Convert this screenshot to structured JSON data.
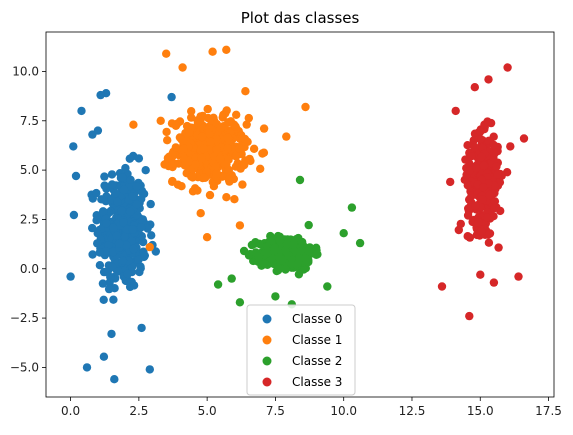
{
  "chart_data": {
    "type": "scatter",
    "title": "Plot das classes",
    "xlabel": "",
    "ylabel": "",
    "xlim": [
      -0.9,
      17.7
    ],
    "ylim": [
      -6.5,
      12.0
    ],
    "xticks": [
      0.0,
      2.5,
      5.0,
      7.5,
      10.0,
      12.5,
      15.0,
      17.5
    ],
    "yticks": [
      -5.0,
      -2.5,
      0.0,
      2.5,
      5.0,
      7.5,
      10.0
    ],
    "xtick_labels": [
      "0.0",
      "2.5",
      "5.0",
      "7.5",
      "10.0",
      "12.5",
      "15.0",
      "17.5"
    ],
    "ytick_labels": [
      "−5.0",
      "−2.5",
      "0.0",
      "2.5",
      "5.0",
      "7.5",
      "10.0"
    ],
    "grid": false,
    "legend_position": "bottom-center",
    "series": [
      {
        "name": "Classe 0",
        "color": "#1f77b4",
        "center": [
          1.9,
          2.0
        ],
        "spread": [
          0.8,
          2.8
        ],
        "count": 380,
        "x": [
          0.1,
          0.6,
          1.6,
          2.9,
          1.3,
          0.0,
          0.2,
          3.7,
          0.4,
          1.1,
          2.3,
          3.0,
          0.8,
          1.0,
          1.5,
          2.6
        ],
        "y": [
          6.2,
          -5.0,
          -5.6,
          -5.1,
          8.9,
          -0.4,
          4.7,
          8.7,
          8.0,
          8.8,
          1.0,
          1.2,
          6.8,
          7.0,
          -3.3,
          -3.0
        ]
      },
      {
        "name": "Classe 1",
        "color": "#ff7f0e",
        "center": [
          5.1,
          6.0
        ],
        "spread": [
          1.2,
          1.5
        ],
        "count": 420,
        "x": [
          3.5,
          5.7,
          5.2,
          8.6,
          2.9,
          6.2,
          4.1,
          5.0,
          3.3,
          2.3,
          7.9,
          6.4
        ],
        "y": [
          10.9,
          11.1,
          11.0,
          8.2,
          1.1,
          2.2,
          10.2,
          1.6,
          7.5,
          7.3,
          6.7,
          9.0
        ]
      },
      {
        "name": "Classe 2",
        "color": "#2ca02c",
        "center": [
          7.9,
          0.8
        ],
        "spread": [
          0.9,
          0.75
        ],
        "count": 370,
        "x": [
          5.4,
          10.3,
          8.4,
          10.6,
          6.2,
          8.1,
          7.5,
          9.4,
          5.9,
          10.0
        ],
        "y": [
          -0.8,
          3.1,
          4.5,
          1.3,
          -1.7,
          -1.8,
          -1.4,
          -0.9,
          -0.5,
          1.8
        ]
      },
      {
        "name": "Classe 3",
        "color": "#d62728",
        "center": [
          15.1,
          4.4
        ],
        "spread": [
          0.5,
          2.1
        ],
        "count": 360,
        "x": [
          13.6,
          16.0,
          14.6,
          16.6,
          15.3,
          13.9,
          15.5,
          14.8,
          16.4,
          14.1,
          15.0,
          16.1
        ],
        "y": [
          -0.9,
          10.2,
          -2.4,
          6.6,
          9.6,
          4.4,
          -0.7,
          9.2,
          -0.4,
          8.0,
          -0.3,
          6.2
        ]
      }
    ]
  }
}
